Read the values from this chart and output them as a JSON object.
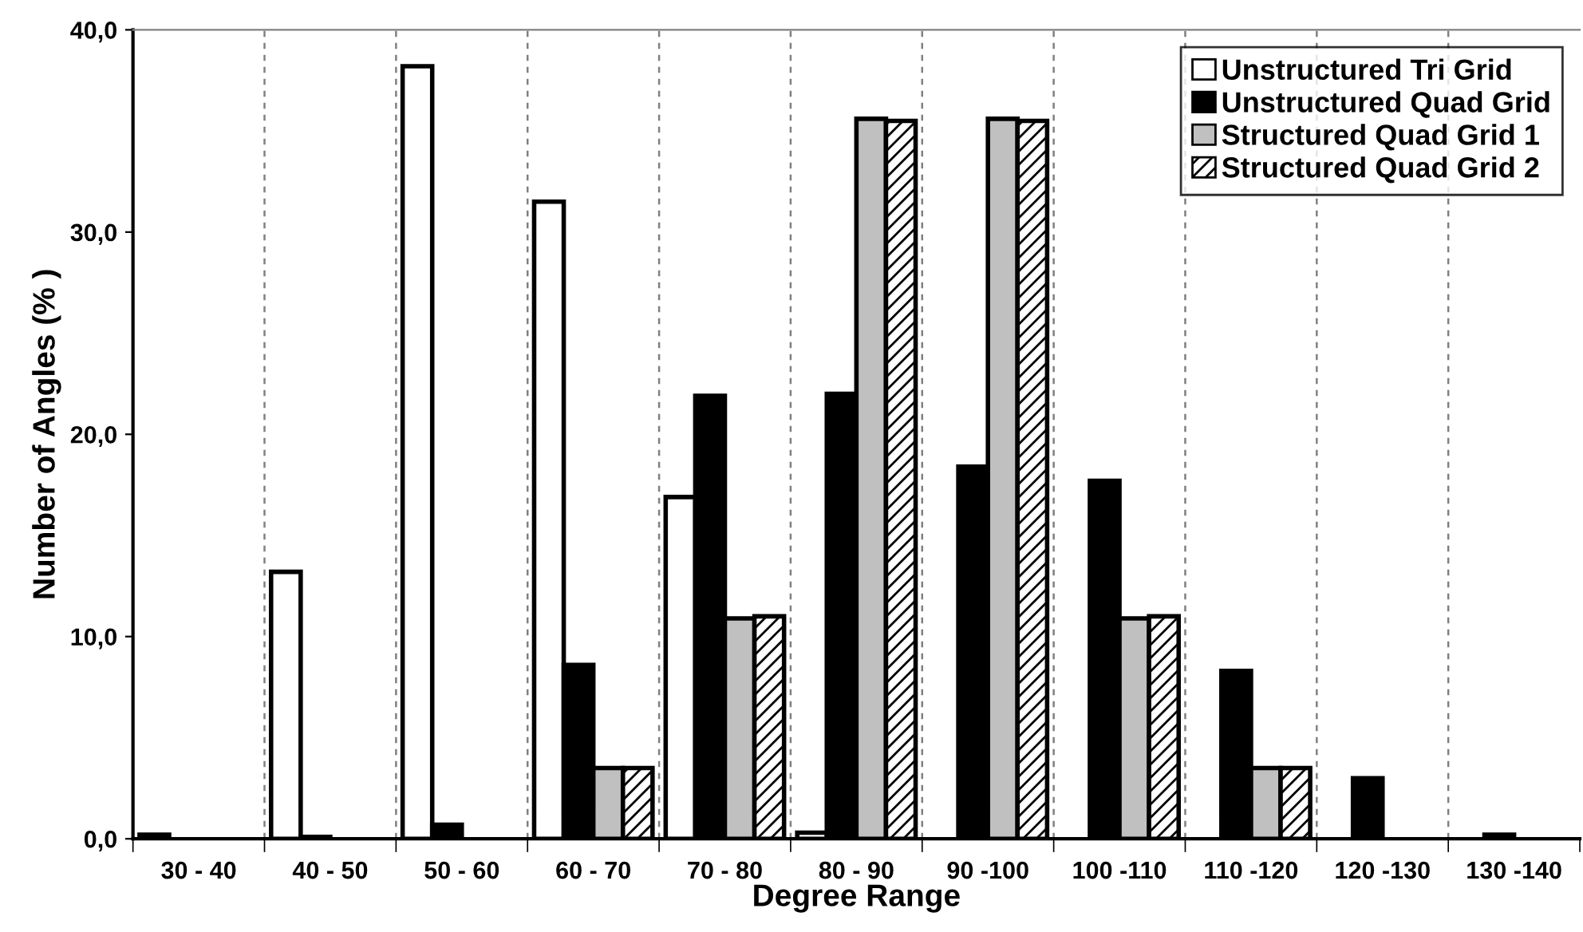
{
  "chart_data": {
    "type": "bar",
    "xlabel": "Degree Range",
    "ylabel": "Number of Angles (% )",
    "categories": [
      "30 - 40",
      "40 - 50",
      "50 - 60",
      "60 - 70",
      "70 - 80",
      "80 - 90",
      "90 -100",
      "100 -110",
      "110 -120",
      "120 -130",
      "130 -140"
    ],
    "series": [
      {
        "name": "Unstructured Tri Grid",
        "color": "#ffffff",
        "values": [
          0.2,
          13.2,
          38.2,
          31.5,
          16.9,
          0.3,
          null,
          null,
          null,
          null,
          null
        ]
      },
      {
        "name": "Unstructured Quad Grid",
        "color": "#000000",
        "values": [
          null,
          0.1,
          0.7,
          8.6,
          21.9,
          22.0,
          18.4,
          17.7,
          8.3,
          3.0,
          0.2
        ]
      },
      {
        "name": "Structured Quad Grid 1",
        "color": "#c0c0c0",
        "values": [
          null,
          null,
          null,
          3.5,
          10.9,
          35.6,
          35.6,
          10.9,
          3.5,
          null,
          null
        ]
      },
      {
        "name": "Structured Quad Grid 2",
        "color": "#000000",
        "values": [
          null,
          null,
          null,
          3.5,
          11.0,
          35.5,
          35.5,
          11.0,
          3.5,
          null,
          null
        ]
      }
    ],
    "ylim": [
      0,
      40
    ],
    "yticks": [
      {
        "value": 0,
        "label": "0,0"
      },
      {
        "value": 10,
        "label": "10,0"
      },
      {
        "value": 20,
        "label": "20,0"
      },
      {
        "value": 30,
        "label": "30,0"
      },
      {
        "value": 40,
        "label": "40,0"
      }
    ],
    "grid": "x",
    "legend": "top right"
  }
}
